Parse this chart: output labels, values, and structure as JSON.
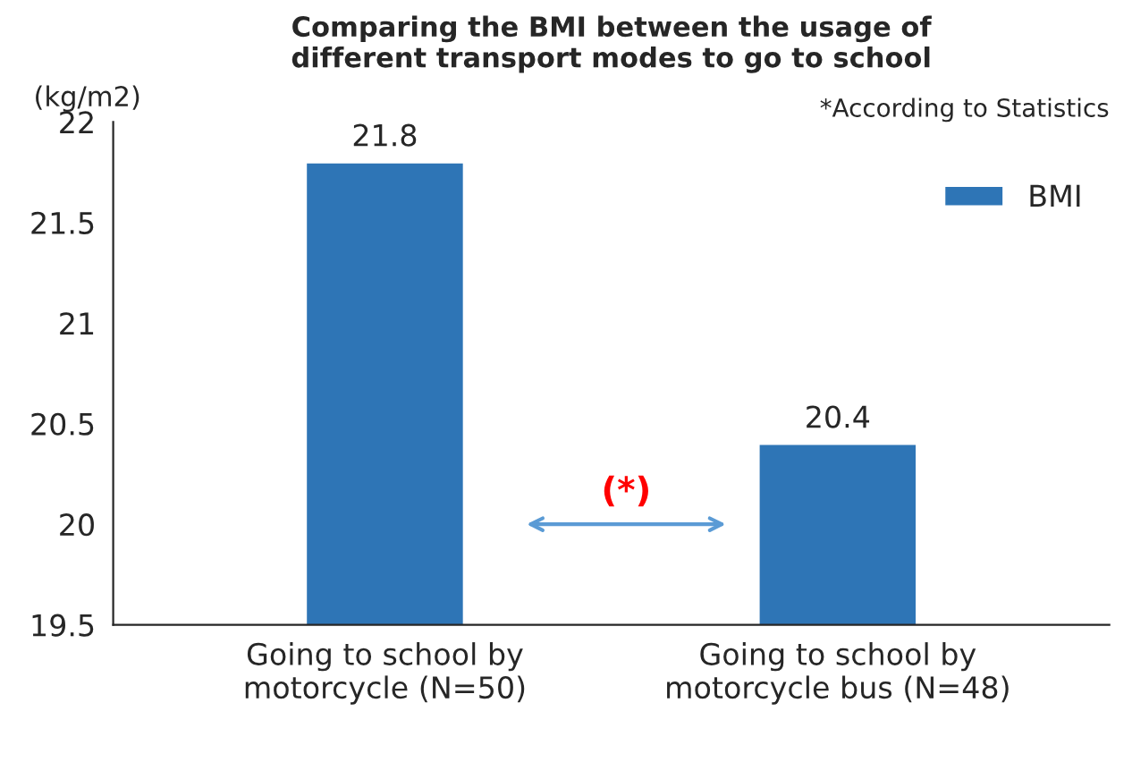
{
  "chart_data": {
    "type": "bar",
    "title": "Comparing the BMI between the usage of\ndifferent transport modes to go to school",
    "ylabel": "(kg/m2)",
    "categories": [
      "Going to school by\nmotorcycle (N=50)",
      "Going to school by\nmotorcycle bus (N=48)"
    ],
    "series": [
      {
        "name": "BMI",
        "color": "#2e75b6",
        "values": [
          21.8,
          20.4
        ]
      }
    ],
    "ylim": [
      19.5,
      22
    ],
    "yticks": [
      19.5,
      20,
      20.5,
      21,
      21.5,
      22
    ],
    "grid": false,
    "legend": "top right",
    "data_labels": true,
    "annotations": [
      "*According to Statistics",
      "(*)"
    ]
  }
}
